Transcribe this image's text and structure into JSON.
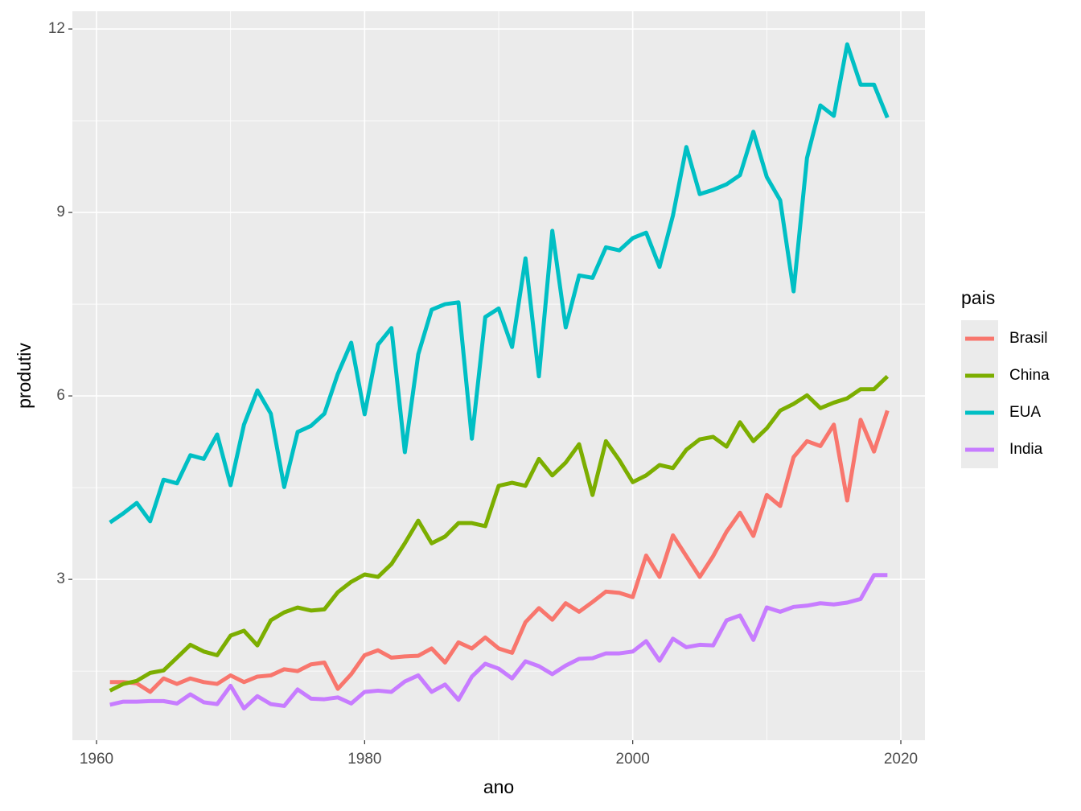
{
  "chart_data": {
    "type": "line",
    "x_label": "ano",
    "y_label": "produtiv",
    "legend_title": "pais",
    "legend_position": "right",
    "grid": true,
    "x": [
      1961,
      1962,
      1963,
      1964,
      1965,
      1966,
      1967,
      1968,
      1969,
      1970,
      1971,
      1972,
      1973,
      1974,
      1975,
      1976,
      1977,
      1978,
      1979,
      1980,
      1981,
      1982,
      1983,
      1984,
      1985,
      1986,
      1987,
      1988,
      1989,
      1990,
      1991,
      1992,
      1993,
      1994,
      1995,
      1996,
      1997,
      1998,
      1999,
      2000,
      2001,
      2002,
      2003,
      2004,
      2005,
      2006,
      2007,
      2008,
      2009,
      2010,
      2011,
      2012,
      2013,
      2014,
      2015,
      2016,
      2017,
      2018,
      2019
    ],
    "xlim": [
      1958.2,
      2021.8
    ],
    "xticks": [
      1960,
      1980,
      2000,
      2020
    ],
    "ylim": [
      0.37,
      12.29
    ],
    "yticks": [
      3,
      6,
      9,
      12
    ],
    "series": [
      {
        "name": "Brasil",
        "color": "#F8766D",
        "values": [
          1.32,
          1.32,
          1.3,
          1.16,
          1.38,
          1.29,
          1.38,
          1.32,
          1.29,
          1.43,
          1.32,
          1.41,
          1.43,
          1.53,
          1.5,
          1.61,
          1.64,
          1.21,
          1.45,
          1.76,
          1.84,
          1.72,
          1.74,
          1.75,
          1.87,
          1.64,
          1.97,
          1.87,
          2.05,
          1.87,
          1.8,
          2.3,
          2.53,
          2.34,
          2.61,
          2.47,
          2.63,
          2.8,
          2.78,
          2.71,
          3.39,
          3.04,
          3.72,
          3.38,
          3.04,
          3.38,
          3.78,
          4.09,
          3.71,
          4.38,
          4.2,
          5.0,
          5.26,
          5.18,
          5.53,
          4.29,
          5.61,
          5.09,
          5.76
        ]
      },
      {
        "name": "China",
        "color": "#7CAE00",
        "values": [
          1.18,
          1.29,
          1.34,
          1.47,
          1.51,
          1.72,
          1.93,
          1.82,
          1.76,
          2.08,
          2.16,
          1.92,
          2.33,
          2.46,
          2.54,
          2.49,
          2.51,
          2.79,
          2.96,
          3.08,
          3.04,
          3.25,
          3.59,
          3.96,
          3.59,
          3.7,
          3.92,
          3.92,
          3.87,
          4.53,
          4.58,
          4.53,
          4.97,
          4.7,
          4.91,
          5.21,
          4.38,
          5.26,
          4.95,
          4.59,
          4.7,
          4.87,
          4.82,
          5.12,
          5.29,
          5.33,
          5.17,
          5.57,
          5.26,
          5.47,
          5.76,
          5.87,
          6.01,
          5.8,
          5.89,
          5.96,
          6.11,
          6.11,
          6.32
        ]
      },
      {
        "name": "EUA",
        "color": "#00BFC4",
        "values": [
          3.93,
          4.08,
          4.25,
          3.95,
          4.63,
          4.57,
          5.03,
          4.97,
          5.37,
          4.54,
          5.53,
          6.09,
          5.71,
          4.51,
          5.41,
          5.51,
          5.71,
          6.36,
          6.87,
          5.7,
          6.84,
          7.11,
          5.08,
          6.68,
          7.41,
          7.5,
          7.53,
          5.3,
          7.29,
          7.43,
          6.8,
          8.25,
          6.32,
          8.7,
          7.12,
          7.97,
          7.93,
          8.43,
          8.38,
          8.58,
          8.67,
          8.11,
          8.95,
          10.07,
          9.3,
          9.37,
          9.46,
          9.61,
          10.32,
          9.58,
          9.2,
          7.71,
          9.89,
          10.75,
          10.58,
          11.75,
          11.09,
          11.09,
          10.55
        ]
      },
      {
        "name": "India",
        "color": "#C77CFF",
        "values": [
          0.95,
          1.0,
          1.0,
          1.01,
          1.01,
          0.97,
          1.12,
          0.99,
          0.96,
          1.26,
          0.89,
          1.09,
          0.96,
          0.93,
          1.2,
          1.05,
          1.04,
          1.07,
          0.97,
          1.16,
          1.18,
          1.16,
          1.33,
          1.43,
          1.16,
          1.28,
          1.03,
          1.41,
          1.62,
          1.54,
          1.38,
          1.66,
          1.58,
          1.45,
          1.59,
          1.7,
          1.71,
          1.79,
          1.79,
          1.82,
          1.99,
          1.67,
          2.03,
          1.89,
          1.93,
          1.92,
          2.33,
          2.41,
          2.01,
          2.54,
          2.47,
          2.55,
          2.57,
          2.61,
          2.59,
          2.62,
          2.68,
          3.07,
          3.07
        ]
      }
    ]
  }
}
